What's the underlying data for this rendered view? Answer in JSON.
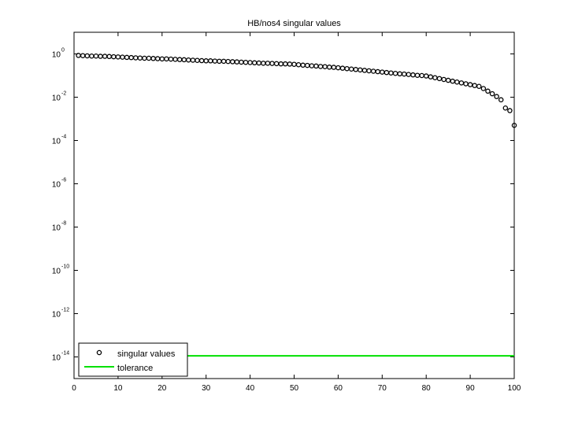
{
  "chart_data": {
    "type": "scatter",
    "title": "HB/nos4 singular values",
    "xlabel": "",
    "ylabel": "",
    "xlim": [
      0,
      100
    ],
    "ylim_log10": [
      -15,
      1
    ],
    "y_scale": "log",
    "grid": false,
    "legend_position": "bottom-left",
    "x_ticks": [
      0,
      10,
      20,
      30,
      40,
      50,
      60,
      70,
      80,
      90,
      100
    ],
    "y_tick_exponents": [
      0,
      -2,
      -4,
      -6,
      -8,
      -10,
      -12,
      -14
    ],
    "y_tick_base": "10",
    "series": [
      {
        "name": "singular values",
        "marker": "circle",
        "color": "#000000",
        "x": [
          1,
          2,
          3,
          4,
          5,
          6,
          7,
          8,
          9,
          10,
          11,
          12,
          13,
          14,
          15,
          16,
          17,
          18,
          19,
          20,
          21,
          22,
          23,
          24,
          25,
          26,
          27,
          28,
          29,
          30,
          31,
          32,
          33,
          34,
          35,
          36,
          37,
          38,
          39,
          40,
          41,
          42,
          43,
          44,
          45,
          46,
          47,
          48,
          49,
          50,
          51,
          52,
          53,
          54,
          55,
          56,
          57,
          58,
          59,
          60,
          61,
          62,
          63,
          64,
          65,
          66,
          67,
          68,
          69,
          70,
          71,
          72,
          73,
          74,
          75,
          76,
          77,
          78,
          79,
          80,
          81,
          82,
          83,
          84,
          85,
          86,
          87,
          88,
          89,
          90,
          91,
          92,
          93,
          94,
          95,
          96,
          97,
          98,
          99,
          100
        ],
        "y_log10": [
          -0.07,
          -0.08,
          -0.09,
          -0.1,
          -0.1,
          -0.11,
          -0.11,
          -0.12,
          -0.13,
          -0.14,
          -0.15,
          -0.16,
          -0.17,
          -0.18,
          -0.19,
          -0.2,
          -0.2,
          -0.21,
          -0.22,
          -0.23,
          -0.23,
          -0.24,
          -0.25,
          -0.26,
          -0.27,
          -0.28,
          -0.29,
          -0.3,
          -0.31,
          -0.32,
          -0.32,
          -0.33,
          -0.34,
          -0.34,
          -0.35,
          -0.36,
          -0.37,
          -0.38,
          -0.39,
          -0.4,
          -0.41,
          -0.42,
          -0.43,
          -0.43,
          -0.44,
          -0.45,
          -0.46,
          -0.46,
          -0.47,
          -0.48,
          -0.5,
          -0.52,
          -0.53,
          -0.55,
          -0.56,
          -0.58,
          -0.59,
          -0.61,
          -0.62,
          -0.64,
          -0.66,
          -0.68,
          -0.7,
          -0.72,
          -0.74,
          -0.76,
          -0.78,
          -0.8,
          -0.82,
          -0.84,
          -0.86,
          -0.88,
          -0.9,
          -0.92,
          -0.93,
          -0.95,
          -0.97,
          -0.99,
          -1.0,
          -1.02,
          -1.06,
          -1.1,
          -1.14,
          -1.18,
          -1.22,
          -1.26,
          -1.3,
          -1.34,
          -1.38,
          -1.42,
          -1.46,
          -1.5,
          -1.6,
          -1.72,
          -1.84,
          -1.97,
          -2.12,
          -2.5,
          -2.62,
          -3.3
        ]
      },
      {
        "name": "tolerance",
        "marker": "line",
        "color": "#00e000",
        "x": [
          1,
          100
        ],
        "y_log10": [
          -13.95,
          -13.95
        ]
      }
    ]
  }
}
